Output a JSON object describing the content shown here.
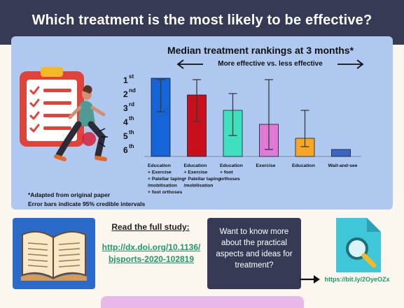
{
  "header": {
    "title": "Which treatment is the most likely to be effective?"
  },
  "chart_data": {
    "type": "bar",
    "title": "Median treatment rankings at 3 months*",
    "subtitle": "More effective vs. less effective",
    "rank_labels": [
      {
        "n": "1",
        "suffix": "st"
      },
      {
        "n": "2",
        "suffix": "nd"
      },
      {
        "n": "3",
        "suffix": "rd"
      },
      {
        "n": "4",
        "suffix": "th"
      },
      {
        "n": "5",
        "suffix": "th"
      },
      {
        "n": "6",
        "suffix": "th"
      }
    ],
    "ylim": [
      1,
      6
    ],
    "y_inverted": true,
    "categories": [
      [
        "Education",
        "+ Exercise",
        "+ Patellar taping",
        "/mobilisation",
        "+ foot orthoses"
      ],
      [
        "Education",
        "+ Exercise",
        "+ Patellar taping",
        "/mobilisation"
      ],
      [
        "Education",
        "+ foot",
        "orthoses"
      ],
      [
        "Exercise"
      ],
      [
        "Education"
      ],
      [
        "Wait-and-see"
      ]
    ],
    "values": [
      1.0,
      2.1,
      3.2,
      4.2,
      5.2,
      6.0
    ],
    "ci_low": [
      1.0,
      1.0,
      2.0,
      1.0,
      3.2,
      null
    ],
    "ci_high": [
      3.3,
      4.0,
      5.0,
      6.0,
      5.8,
      null
    ],
    "colors": [
      "#1565d8",
      "#c7101c",
      "#3fe0c0",
      "#e07ad6",
      "#f5a623",
      "#3b67c4"
    ]
  },
  "footnotes": [
    "*Adapted from original paper",
    "Error bars indicate 95% credible intervals"
  ],
  "study": {
    "label": "Read the full study:",
    "link": "http://dx.doi.org/10.1136/bjsports-2020-102819"
  },
  "question": {
    "text": "Want to know more about the practical aspects and ideas for treatment?"
  },
  "short_link": "https://bit.ly/2OyeOZx"
}
